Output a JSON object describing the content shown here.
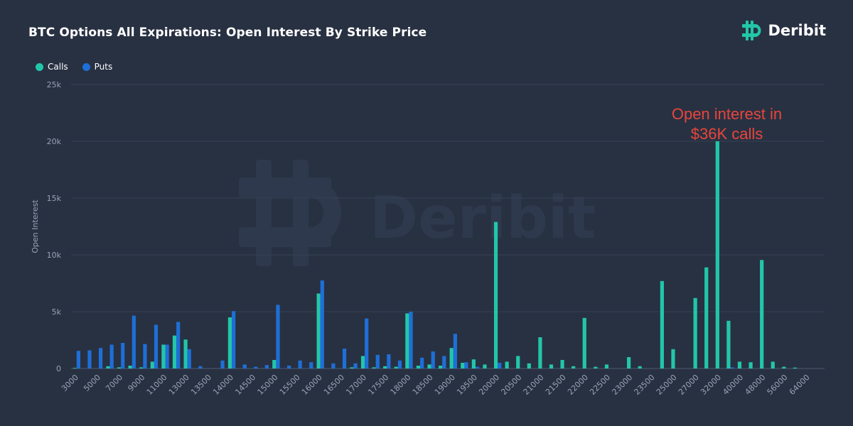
{
  "title": "BTC Options All Expirations: Open Interest By Strike Price",
  "brand": {
    "name": "Deribit",
    "color": "#22c6a9"
  },
  "watermark": "Deribit",
  "annotation": {
    "line1": "Open interest in",
    "line2": "$36K calls",
    "color": "#e8453c"
  },
  "legend": [
    {
      "label": "Calls",
      "color": "#22c6a9"
    },
    {
      "label": "Puts",
      "color": "#1e6fd6"
    }
  ],
  "chart_data": {
    "type": "bar",
    "title": "BTC Options All Expirations: Open Interest By Strike Price",
    "xlabel": "",
    "ylabel": "Open Interest",
    "ylim": [
      0,
      25000
    ],
    "yticks": [
      0,
      5000,
      10000,
      15000,
      20000,
      25000
    ],
    "ytick_labels": [
      "0",
      "5k",
      "10k",
      "15k",
      "20k",
      "25k"
    ],
    "grid": "horizontal",
    "legend_position": "top-left",
    "categories": [
      "3000",
      "4000",
      "5000",
      "6000",
      "7000",
      "8000",
      "9000",
      "10000",
      "11000",
      "12000",
      "13000",
      "13250",
      "13500",
      "13750",
      "14000",
      "14250",
      "14500",
      "14750",
      "15000",
      "15250",
      "15500",
      "15750",
      "16000",
      "16250",
      "16500",
      "16750",
      "17000",
      "17250",
      "17500",
      "17750",
      "18000",
      "18250",
      "18500",
      "18750",
      "19000",
      "19250",
      "19500",
      "19750",
      "20000",
      "20250",
      "20500",
      "20750",
      "21000",
      "21250",
      "21500",
      "21750",
      "22000",
      "22250",
      "22500",
      "22750",
      "23000",
      "23250",
      "23500",
      "24000",
      "25000",
      "26000",
      "27000",
      "28000",
      "32000",
      "36000",
      "40000",
      "44000",
      "48000",
      "52000",
      "56000",
      "60000",
      "64000",
      "68000"
    ],
    "tick_labels": [
      "3000",
      "5000",
      "7000",
      "9000",
      "11000",
      "13000",
      "13500",
      "14000",
      "14500",
      "15000",
      "15500",
      "16000",
      "16500",
      "17000",
      "17500",
      "18000",
      "18500",
      "19000",
      "19500",
      "20000",
      "20500",
      "21000",
      "21500",
      "22000",
      "22500",
      "23000",
      "23500",
      "25000",
      "27000",
      "32000",
      "40000",
      "48000",
      "56000",
      "64000"
    ],
    "series": [
      {
        "name": "Calls",
        "color": "#22c6a9",
        "values": [
          50,
          0,
          0,
          200,
          100,
          250,
          100,
          600,
          2100,
          2900,
          2550,
          0,
          0,
          0,
          4500,
          0,
          0,
          0,
          750,
          0,
          0,
          0,
          6600,
          0,
          0,
          100,
          1100,
          100,
          200,
          150,
          4850,
          250,
          350,
          250,
          1800,
          500,
          800,
          350,
          12900,
          600,
          1100,
          450,
          2750,
          350,
          750,
          200,
          4450,
          150,
          350,
          0,
          1000,
          200,
          0,
          7700,
          1700,
          0,
          6200,
          8900,
          20000,
          4200,
          600,
          550,
          9550,
          600,
          150,
          80,
          0,
          0
        ]
      },
      {
        "name": "Puts",
        "color": "#1e6fd6",
        "values": [
          1550,
          1600,
          1800,
          2100,
          2250,
          4650,
          2150,
          3850,
          2100,
          4100,
          1700,
          200,
          0,
          700,
          5050,
          350,
          150,
          300,
          5600,
          250,
          700,
          550,
          7750,
          450,
          1750,
          450,
          4400,
          1200,
          1250,
          700,
          5000,
          950,
          1500,
          1100,
          3050,
          550,
          150,
          0,
          500,
          0,
          0,
          0,
          0,
          0,
          0,
          0,
          0,
          0,
          0,
          0,
          0,
          0,
          0,
          0,
          0,
          0,
          0,
          0,
          0,
          100,
          0,
          0,
          0,
          0,
          0,
          0,
          0,
          0
        ]
      }
    ]
  }
}
